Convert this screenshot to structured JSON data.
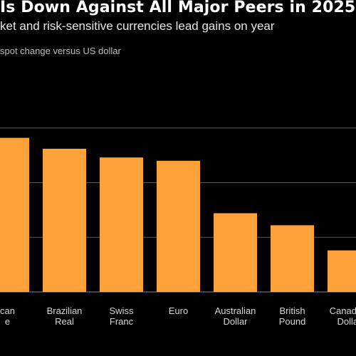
{
  "chart_data": {
    "type": "bar",
    "title": "Is Down Against All Major Peers in 2025",
    "subtitle": "ket and risk-sensitive currencies lead gains on year",
    "ylabel": "spot change versus US dollar",
    "xlabel": "",
    "categories": [
      "can\ne",
      "Brazilian\nReal",
      "Swiss\nFranc",
      "Euro",
      "Australian\nDollar",
      "British\nPound",
      "Canadian\nDollar"
    ],
    "values": [
      14.1,
      13.1,
      12.3,
      12.0,
      7.2,
      6.1,
      3.8
    ],
    "ylim": [
      0,
      20
    ],
    "bar_color": "#ffa23a",
    "grid": true,
    "grid_color": "#5a5a5a"
  }
}
